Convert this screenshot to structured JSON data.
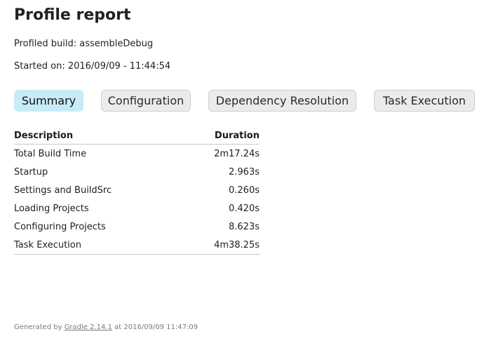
{
  "header": {
    "title": "Profile report",
    "profiled_build": "Profiled build: assembleDebug",
    "started_on": "Started on: 2016/09/09 - 11:44:54"
  },
  "tabs": [
    {
      "label": "Summary",
      "active": true
    },
    {
      "label": "Configuration",
      "active": false
    },
    {
      "label": "Dependency Resolution",
      "active": false
    },
    {
      "label": "Task Execution",
      "active": false
    }
  ],
  "summary_table": {
    "headers": {
      "description": "Description",
      "duration": "Duration"
    },
    "rows": [
      {
        "description": "Total Build Time",
        "duration": "2m17.24s"
      },
      {
        "description": "Startup",
        "duration": "2.963s"
      },
      {
        "description": "Settings and BuildSrc",
        "duration": "0.260s"
      },
      {
        "description": "Loading Projects",
        "duration": "0.420s"
      },
      {
        "description": "Configuring Projects",
        "duration": "8.623s"
      },
      {
        "description": "Task Execution",
        "duration": "4m38.25s"
      }
    ]
  },
  "footer": {
    "prefix": "Generated by",
    "link_text": "Gradle 2.14.1",
    "suffix": "at 2016/09/09 11:47:09"
  },
  "colors": {
    "active_tab": "#c7ecf8",
    "inactive_tab": "#ebebeb"
  }
}
